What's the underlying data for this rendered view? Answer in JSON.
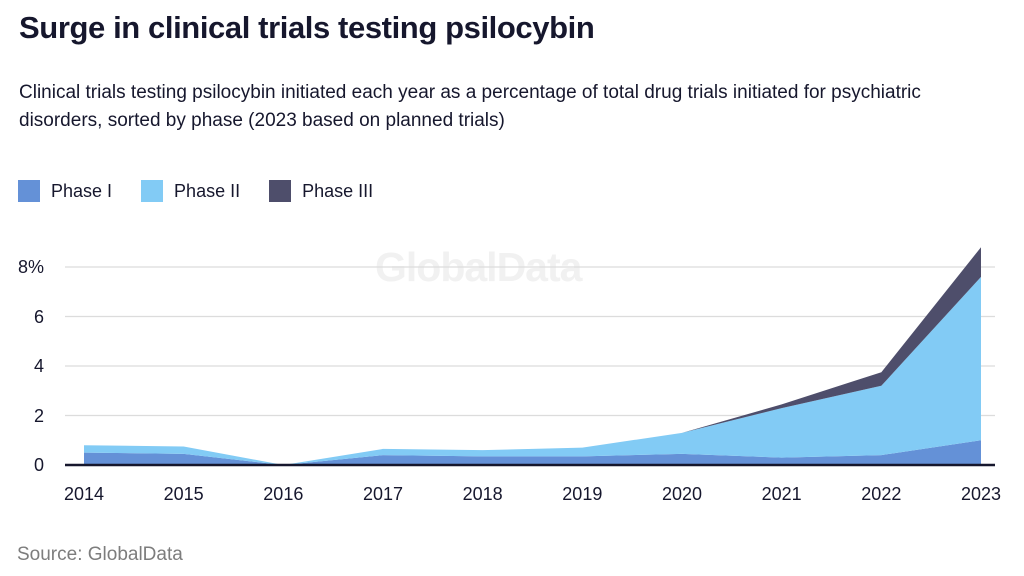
{
  "header": {
    "title": "Surge in clinical trials testing psilocybin",
    "subtitle": "Clinical trials testing psilocybin initiated each year as a percentage of total drug trials initiated for psychiatric disorders, sorted by phase (2023 based on planned trials)"
  },
  "watermark": "GlobalData",
  "source": "Source: GlobalData",
  "colors": {
    "text": "#16172d",
    "grid": "#dcdcdc",
    "axis": "#16172d",
    "watermark": "#f1f1f1",
    "source_text": "#7d7d7d",
    "background": "#ffffff",
    "phase1": "#6491d7",
    "phase2": "#82cbf5",
    "phase3": "#4e4e6b"
  },
  "chart_data": {
    "type": "area",
    "stacked": true,
    "title": "Surge in clinical trials testing psilocybin",
    "xlabel": "",
    "ylabel": "",
    "x": [
      2014,
      2015,
      2016,
      2017,
      2018,
      2019,
      2020,
      2021,
      2022,
      2023
    ],
    "series": [
      {
        "name": "Phase I",
        "color": "#6491d7",
        "values": [
          0.5,
          0.45,
          0,
          0.4,
          0.35,
          0.35,
          0.45,
          0.3,
          0.4,
          1.0
        ]
      },
      {
        "name": "Phase II",
        "color": "#82cbf5",
        "values": [
          0.3,
          0.3,
          0,
          0.25,
          0.25,
          0.35,
          0.85,
          2.0,
          2.8,
          6.6
        ]
      },
      {
        "name": "Phase III",
        "color": "#4e4e6b",
        "values": [
          0,
          0,
          0,
          0,
          0,
          0,
          0,
          0.15,
          0.55,
          1.2
        ]
      }
    ],
    "stack_totals": [
      0.8,
      0.75,
      0,
      0.65,
      0.6,
      0.7,
      1.3,
      2.45,
      3.75,
      8.8
    ],
    "yticks": [
      0,
      2,
      4,
      6,
      8
    ],
    "ytick_labels": [
      "0",
      "2",
      "4",
      "6",
      "8%"
    ],
    "ylim": [
      0,
      8.9
    ],
    "grid": "horizontal",
    "legend_position": "top-left"
  }
}
